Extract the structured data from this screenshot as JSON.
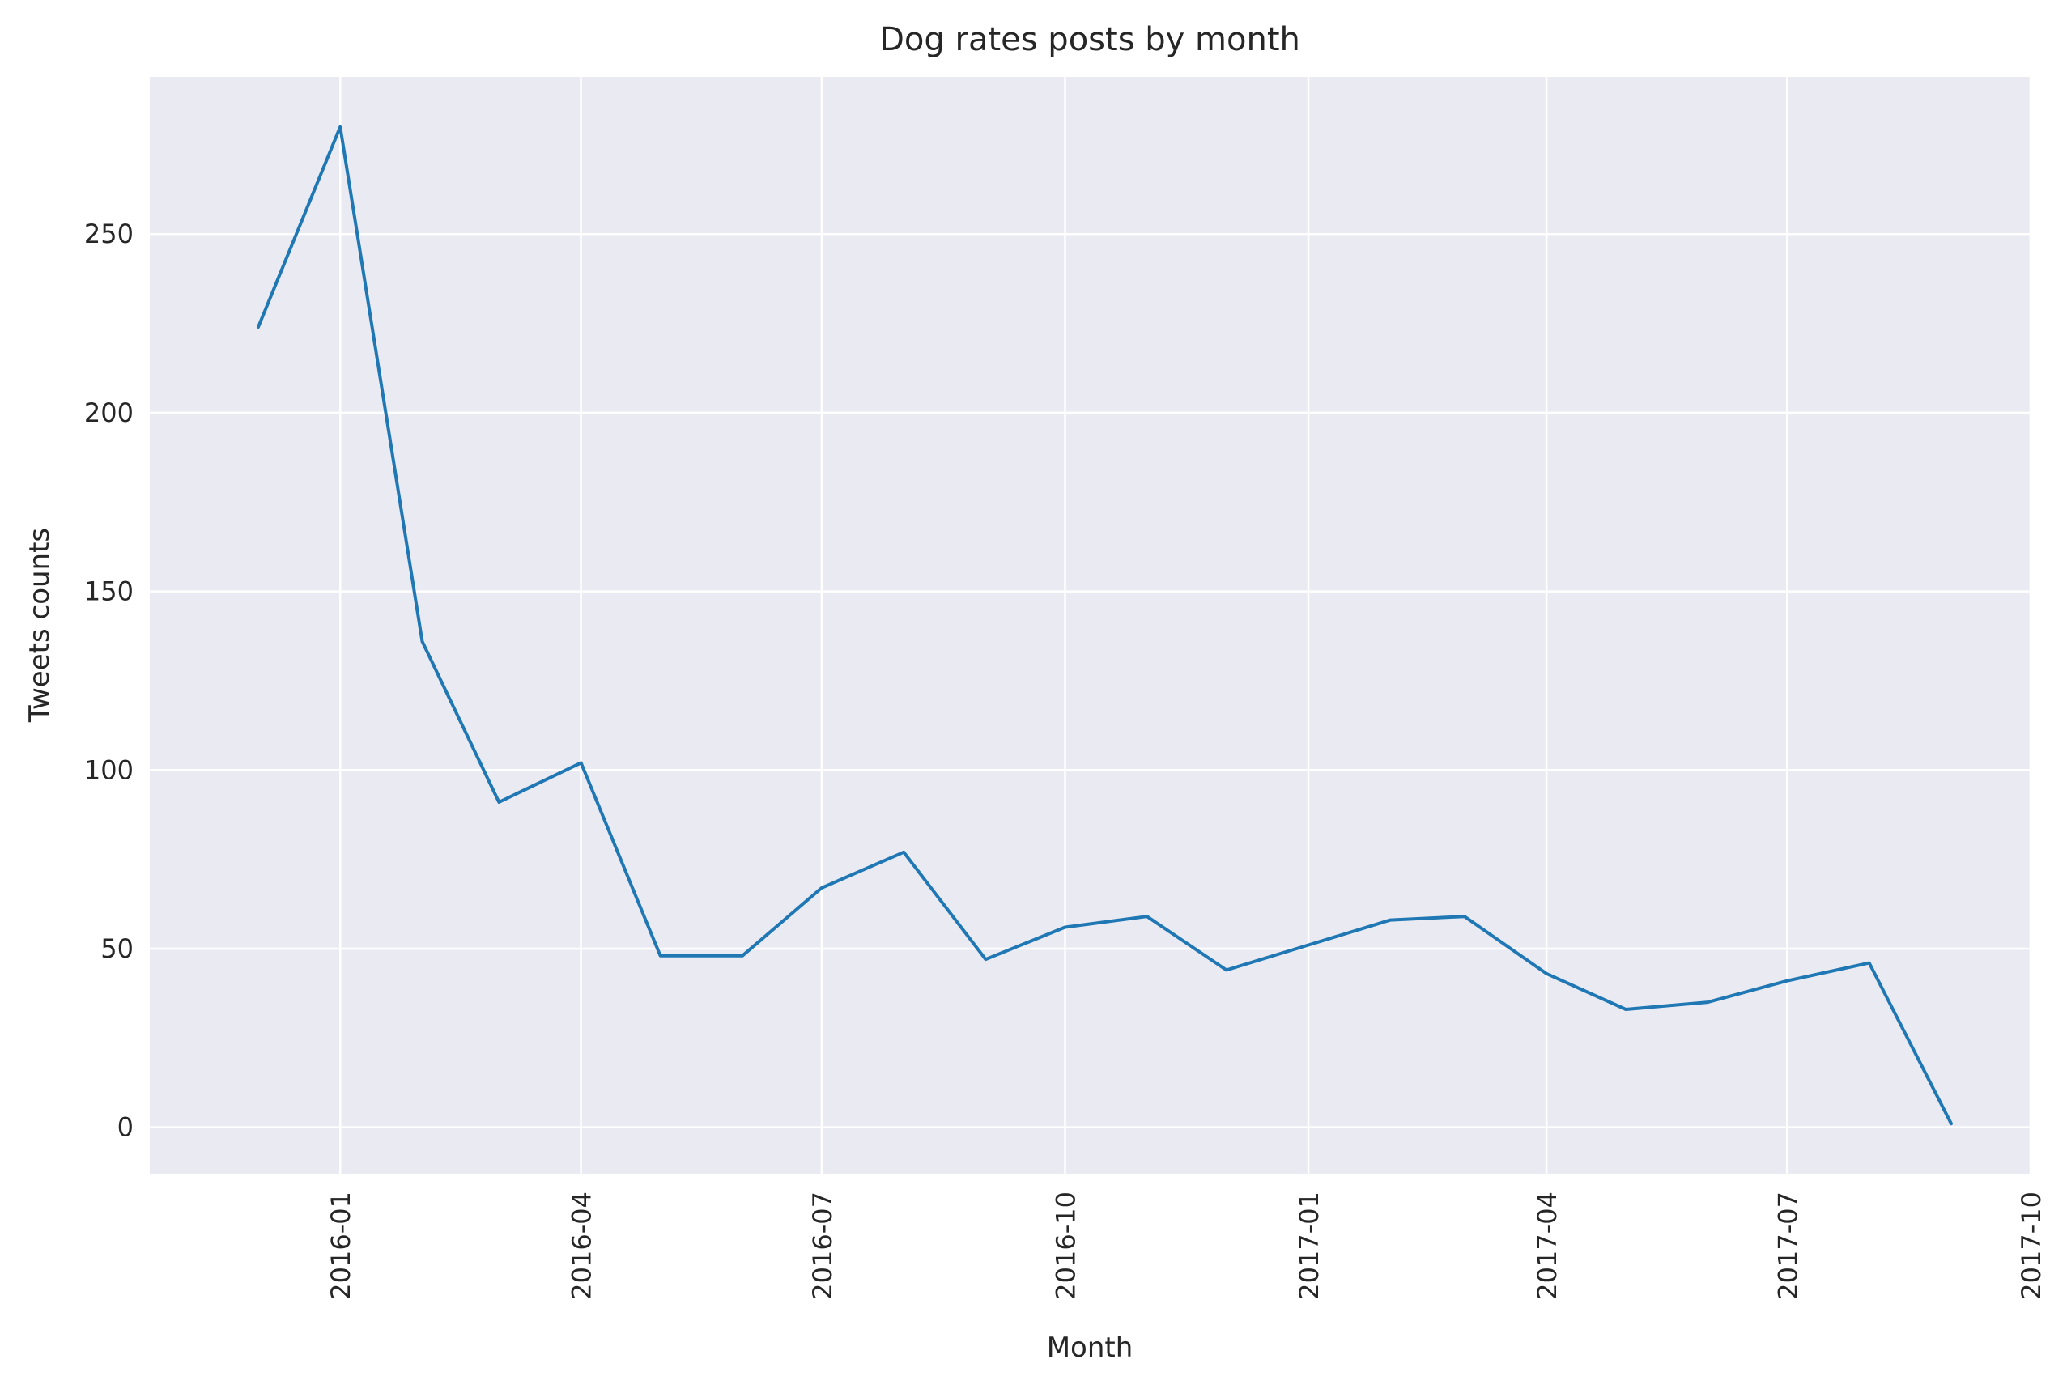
{
  "chart_data": {
    "type": "line",
    "title": "Dog rates posts by month",
    "xlabel": "Month",
    "ylabel": "Tweets counts",
    "x_ticks": [
      "2016-01",
      "2016-04",
      "2016-07",
      "2016-10",
      "2017-01",
      "2017-04",
      "2017-07",
      "2017-10"
    ],
    "y_ticks": [
      "0",
      "50",
      "100",
      "150",
      "200",
      "250"
    ],
    "xlim": [
      "2015-10-21",
      "2017-10-01"
    ],
    "ylim": [
      -13,
      294
    ],
    "grid": true,
    "line_color": "#1f77b4",
    "background_color": "#eaeaf2",
    "series": [
      {
        "x": [
          "2015-12-01",
          "2016-01-01",
          "2016-02-01",
          "2016-03-01",
          "2016-04-01",
          "2016-05-01",
          "2016-06-01",
          "2016-07-01",
          "2016-08-01",
          "2016-09-01",
          "2016-10-01",
          "2016-11-01",
          "2016-12-01",
          "2017-01-01",
          "2017-02-01",
          "2017-03-01",
          "2017-04-01",
          "2017-05-01",
          "2017-06-01",
          "2017-07-01",
          "2017-08-01",
          "2017-09-01"
        ],
        "values": [
          224,
          280,
          136,
          91,
          102,
          48,
          48,
          67,
          77,
          47,
          56,
          59,
          44,
          51,
          58,
          59,
          43,
          33,
          35,
          41,
          46,
          1
        ]
      }
    ]
  }
}
